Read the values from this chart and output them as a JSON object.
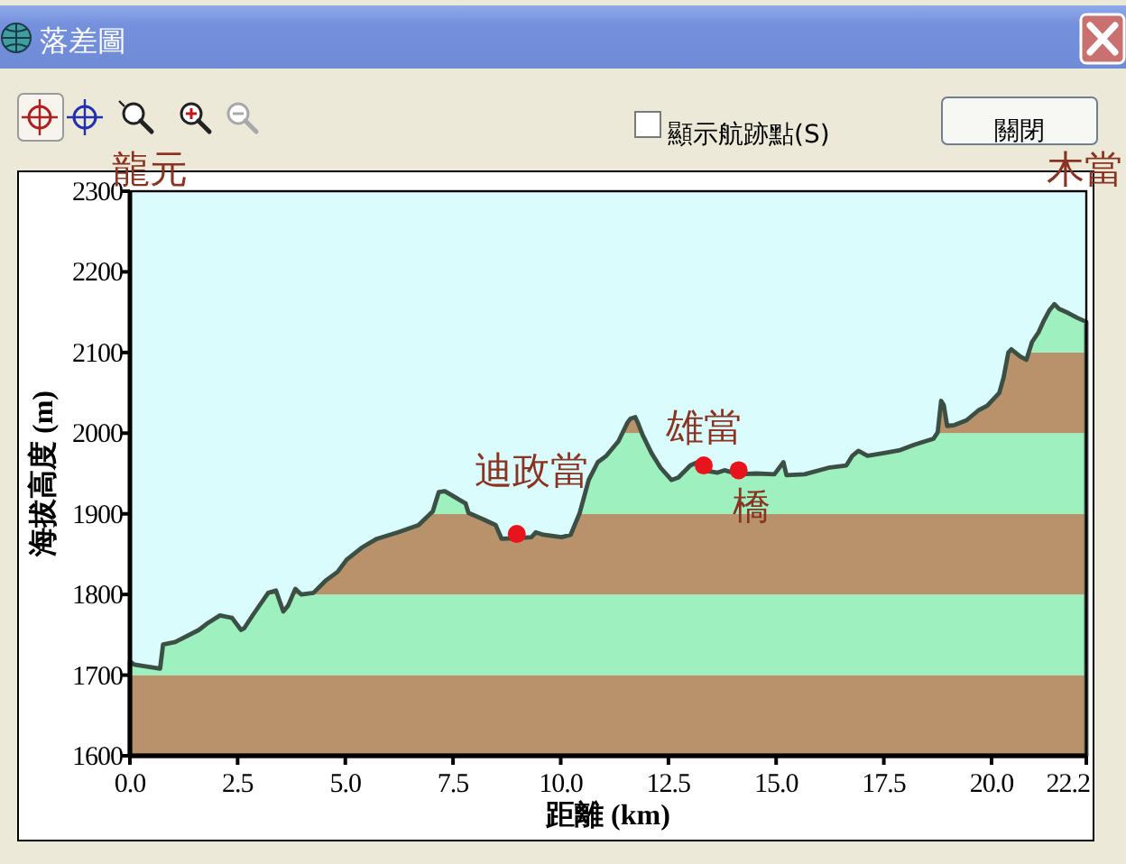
{
  "chart_data": {
    "type": "area",
    "title": "落差圖",
    "xlabel": "距離 (km)",
    "ylabel": "海拔高度 (m)",
    "xlim": [
      0,
      22.2
    ],
    "ylim": [
      1600,
      2300
    ],
    "xticks": [
      {
        "value": 0,
        "label": "0.0"
      },
      2.5,
      {
        "value": 5,
        "label": "5.0"
      },
      7.5,
      {
        "value": 10,
        "label": "10.0"
      },
      12.5,
      {
        "value": 15,
        "label": "15.0"
      },
      17.5,
      {
        "value": 20,
        "label": "20.0"
      },
      22.2
    ],
    "yticks": [
      1600,
      1700,
      1800,
      1900,
      2000,
      2100,
      2200,
      2300
    ],
    "series": [
      {
        "type": "area",
        "color": "#3b4f45",
        "x": [
          0,
          0.1,
          0.7,
          0.77,
          1.05,
          1.6,
          1.82,
          2.09,
          2.37,
          2.58,
          2.65,
          2.86,
          3.21,
          3.39,
          3.56,
          3.67,
          3.84,
          3.98,
          4.26,
          4.54,
          4.82,
          5.03,
          5.38,
          5.73,
          6.22,
          6.7,
          7.03,
          7.17,
          7.31,
          7.79,
          7.86,
          8.21,
          8.49,
          8.63,
          8.98,
          9.32,
          9.42,
          9.6,
          10.02,
          10.23,
          10.44,
          10.65,
          10.86,
          11.06,
          11.34,
          11.55,
          11.62,
          11.73,
          11.79,
          11.9,
          12.11,
          12.32,
          12.57,
          12.73,
          13.01,
          13.26,
          13.43,
          13.64,
          13.8,
          14.13,
          14.54,
          14.96,
          15.17,
          15.24,
          15.66,
          16.21,
          16.63,
          16.77,
          16.91,
          17.12,
          17.47,
          17.88,
          18.23,
          18.65,
          18.75,
          18.83,
          18.89,
          18.97,
          19.14,
          19.42,
          19.69,
          19.9,
          20.18,
          20.28,
          20.39,
          20.46,
          20.67,
          20.81,
          20.94,
          21.09,
          21.22,
          21.34,
          21.46,
          21.57,
          21.78,
          21.99,
          22.2
        ],
        "values": [
          1717,
          1713,
          1708,
          1738,
          1741,
          1756,
          1765,
          1774,
          1771,
          1756,
          1758,
          1775,
          1802,
          1805,
          1779,
          1786,
          1807,
          1800,
          1802,
          1817,
          1828,
          1843,
          1858,
          1869,
          1877,
          1886,
          1903,
          1927,
          1928,
          1913,
          1901,
          1893,
          1886,
          1869,
          1870,
          1871,
          1877,
          1874,
          1871,
          1874,
          1901,
          1942,
          1964,
          1972,
          1990,
          2013,
          2018,
          2020,
          2013,
          1998,
          1975,
          1957,
          1942,
          1945,
          1960,
          1966,
          1953,
          1951,
          1954,
          1949,
          1950,
          1949,
          1964,
          1948,
          1949,
          1957,
          1960,
          1972,
          1978,
          1972,
          1975,
          1979,
          1986,
          1993,
          2001,
          2040,
          2035,
          2009,
          2010,
          2016,
          2028,
          2034,
          2050,
          2069,
          2100,
          2104,
          2095,
          2091,
          2113,
          2125,
          2140,
          2152,
          2160,
          2154,
          2149,
          2143,
          2138
        ]
      },
      {
        "type": "scatter",
        "color": "#e8141c",
        "x": [
          8.98,
          13.32,
          14.13
        ],
        "values": [
          1875,
          1960,
          1954
        ]
      }
    ],
    "bands": [
      {
        "axis": "y",
        "from": 1600,
        "to": 1700,
        "color": "#b7926a"
      },
      {
        "axis": "y",
        "from": 1700,
        "to": 1800,
        "color": "#9ef0be"
      },
      {
        "axis": "y",
        "from": 1800,
        "to": 1900,
        "color": "#b7926a"
      },
      {
        "axis": "y",
        "from": 1900,
        "to": 2000,
        "color": "#9ef0be"
      },
      {
        "axis": "y",
        "from": 2000,
        "to": 2100,
        "color": "#b7926a"
      },
      {
        "axis": "y",
        "from": 2100,
        "to": 2200,
        "color": "#9ef0be"
      }
    ],
    "annotations": [
      "龍元",
      "木當",
      {
        "text": "迪政當",
        "x": 8.98,
        "y": 1875
      },
      {
        "text": "雄當",
        "x": 13.32,
        "y": 1960
      },
      {
        "text": "橋",
        "x": 14.13,
        "y": 1954
      },
      "顯示航跡點(S)",
      "關閉"
    ]
  }
}
